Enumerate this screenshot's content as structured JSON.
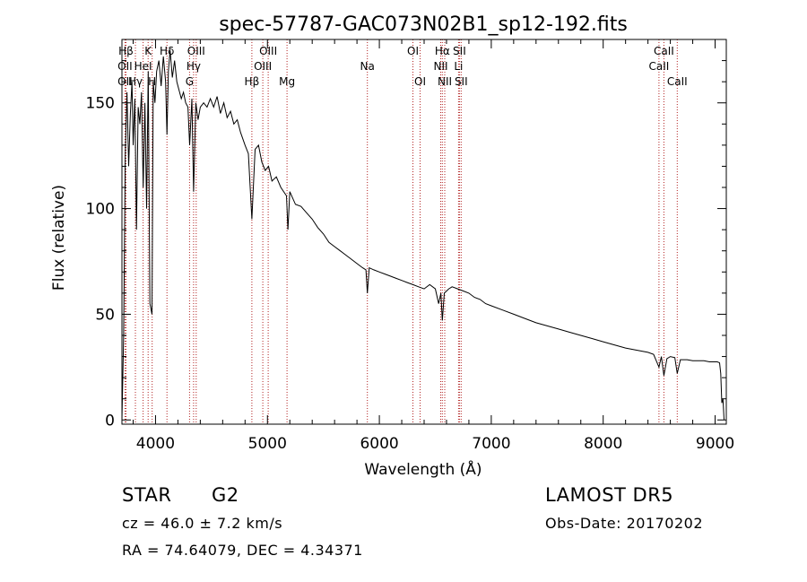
{
  "chart_data": {
    "type": "line",
    "title": "spec-57787-GAC073N02B1_sp12-192.fits",
    "xlabel": "Wavelength (Å)",
    "ylabel": "Flux (relative)",
    "xlim": [
      3700,
      9100
    ],
    "ylim": [
      -2,
      180
    ],
    "xticks": [
      4000,
      5000,
      6000,
      7000,
      8000,
      9000
    ],
    "yticks": [
      0,
      50,
      100,
      150
    ],
    "grid": false,
    "series": [
      {
        "x": [
          3700,
          3715,
          3730,
          3745,
          3760,
          3775,
          3790,
          3800,
          3815,
          3830,
          3845,
          3860,
          3875,
          3890,
          3905,
          3920,
          3935,
          3950,
          3968,
          3980,
          3995,
          4010,
          4030,
          4050,
          4070,
          4090,
          4102,
          4115,
          4130,
          4150,
          4170,
          4190,
          4210,
          4230,
          4250,
          4270,
          4290,
          4305,
          4325,
          4340,
          4360,
          4380,
          4400,
          4430,
          4460,
          4490,
          4520,
          4550,
          4580,
          4610,
          4640,
          4670,
          4700,
          4730,
          4760,
          4800,
          4830,
          4861,
          4890,
          4920,
          4950,
          4980,
          5010,
          5040,
          5080,
          5120,
          5170,
          5183,
          5200,
          5250,
          5300,
          5350,
          5400,
          5450,
          5500,
          5550,
          5600,
          5650,
          5700,
          5750,
          5800,
          5850,
          5880,
          5893,
          5910,
          5950,
          6000,
          6050,
          6100,
          6150,
          6200,
          6250,
          6300,
          6350,
          6400,
          6450,
          6500,
          6530,
          6550,
          6563,
          6580,
          6620,
          6650,
          6700,
          6750,
          6800,
          6850,
          6900,
          6950,
          7000,
          7100,
          7200,
          7300,
          7400,
          7500,
          7600,
          7700,
          7800,
          7900,
          8000,
          8100,
          8200,
          8300,
          8400,
          8450,
          8498,
          8520,
          8542,
          8570,
          8600,
          8640,
          8662,
          8690,
          8750,
          8800,
          8850,
          8900,
          8950,
          9000,
          9020,
          9040,
          9050,
          9060,
          9070,
          9080
        ],
        "y": [
          0,
          40,
          125,
          155,
          120,
          145,
          160,
          130,
          152,
          90,
          148,
          140,
          155,
          110,
          150,
          100,
          165,
          55,
          50,
          160,
          150,
          165,
          170,
          158,
          172,
          160,
          135,
          165,
          175,
          162,
          170,
          160,
          156,
          152,
          155,
          150,
          148,
          130,
          152,
          108,
          150,
          142,
          148,
          150,
          148,
          152,
          148,
          153,
          145,
          150,
          143,
          146,
          140,
          142,
          136,
          130,
          126,
          95,
          128,
          130,
          122,
          118,
          120,
          113,
          115,
          110,
          106,
          90,
          108,
          102,
          101,
          98,
          95,
          91,
          88,
          84,
          82,
          80,
          78,
          76,
          74,
          72,
          71,
          60,
          72,
          71,
          70,
          69,
          68,
          67,
          66,
          65,
          64,
          63,
          62,
          64,
          62,
          55,
          60,
          47,
          60,
          62,
          63,
          62,
          61,
          60,
          58,
          57,
          55,
          54,
          52,
          50,
          48,
          46,
          44.5,
          43,
          41.5,
          40,
          38.5,
          37,
          35.5,
          34,
          33,
          32,
          31,
          25,
          30,
          21,
          29,
          30,
          29.5,
          22,
          28.5,
          28.5,
          28,
          28,
          28,
          27.5,
          27.5,
          27.5,
          27,
          22,
          8,
          10,
          0
        ]
      }
    ],
    "lines": [
      {
        "label": "Hβ",
        "wave": 3736,
        "row": 1
      },
      {
        "label": "OII",
        "wave": 3727,
        "row": 2
      },
      {
        "label": "OII",
        "wave": 3727,
        "row": 3
      },
      {
        "label": "K",
        "wave": 3934,
        "row": 1
      },
      {
        "label": "HeI",
        "wave": 3889,
        "row": 2
      },
      {
        "label": "Hγ",
        "wave": 3820,
        "row": 3
      },
      {
        "label": "H",
        "wave": 3970,
        "row": 3
      },
      {
        "label": "Hδ",
        "wave": 4102,
        "row": 1
      },
      {
        "label": "OIII",
        "wave": 4363,
        "row": 1
      },
      {
        "label": "Hγ",
        "wave": 4340,
        "row": 2
      },
      {
        "label": "G",
        "wave": 4304,
        "row": 3
      },
      {
        "label": "OIII",
        "wave": 5007,
        "row": 1
      },
      {
        "label": "OIII",
        "wave": 4959,
        "row": 2
      },
      {
        "label": "Hβ",
        "wave": 4861,
        "row": 3
      },
      {
        "label": "Mg",
        "wave": 5175,
        "row": 3
      },
      {
        "label": "Na",
        "wave": 5893,
        "row": 2
      },
      {
        "label": "OI",
        "wave": 6300,
        "row": 1
      },
      {
        "label": "OI",
        "wave": 6364,
        "row": 3
      },
      {
        "label": "Hα",
        "wave": 6563,
        "row": 1
      },
      {
        "label": "SII",
        "wave": 6716,
        "row": 1
      },
      {
        "label": "NII",
        "wave": 6548,
        "row": 2
      },
      {
        "label": "Li",
        "wave": 6708,
        "row": 2
      },
      {
        "label": "NII",
        "wave": 6584,
        "row": 3
      },
      {
        "label": "SII",
        "wave": 6731,
        "row": 3
      },
      {
        "label": "CaII",
        "wave": 8542,
        "row": 1
      },
      {
        "label": "CaII",
        "wave": 8498,
        "row": 2
      },
      {
        "label": "CaII",
        "wave": 8662,
        "row": 3
      }
    ]
  },
  "info": {
    "class_label": "STAR",
    "subclass": "G2",
    "survey": "LAMOST DR5",
    "cz": "cz = 46.0 ± 7.2 km/s",
    "obs_date": "Obs-Date: 20170202",
    "coords": "RA =  74.64079, DEC =   4.34371"
  },
  "colors": {
    "line_marker": "#b22222",
    "spectrum": "#000000"
  }
}
